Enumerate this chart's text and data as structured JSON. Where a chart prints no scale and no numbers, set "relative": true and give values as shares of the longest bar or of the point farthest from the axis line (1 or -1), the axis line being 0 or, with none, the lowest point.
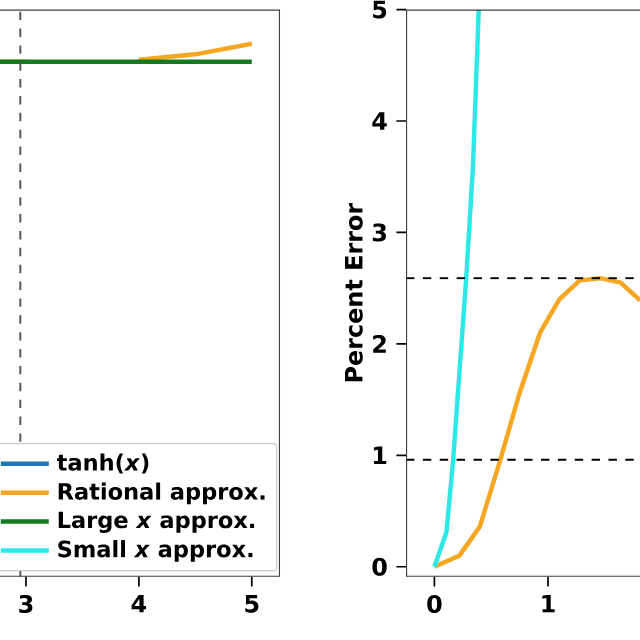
{
  "chart_data": [
    {
      "type": "line",
      "relative": true,
      "xlim": [
        2.77,
        5.25
      ],
      "xticks": [
        3,
        4,
        5
      ],
      "tick_labels": "x",
      "legend": "bottom right",
      "marker": "none",
      "line_style": "solid",
      "ref_lines": [
        {
          "axis": "x",
          "value": 2.95,
          "color": "#555555",
          "line_style": "dashed"
        }
      ],
      "series": [
        {
          "name": "tanh(*x*)",
          "color": "#1f77b4",
          "values": [
            null,
            null,
            null,
            null,
            null,
            null
          ]
        },
        {
          "name": "Rational approx.",
          "color": "#f5a623",
          "x": [
            2.77,
            3,
            3.5,
            4,
            4.5,
            5
          ],
          "values": [
            0.966,
            0.966,
            null,
            0.97,
            0.98,
            1.0
          ]
        },
        {
          "name": "Large *x* approx.",
          "color": "#157a1f",
          "x": [
            2.77,
            3,
            3.5,
            4,
            4.5,
            5
          ],
          "values": [
            0.966,
            0.966,
            0.966,
            0.966,
            0.966,
            0.966
          ]
        },
        {
          "name": "Small *x* approx.",
          "color": "#2ee8e8",
          "values": [
            null,
            null,
            null,
            null,
            null,
            null
          ]
        }
      ]
    },
    {
      "type": "line",
      "ylabel": "Percent Error",
      "xlim": [
        -0.25,
        1.81
      ],
      "ylim": [
        -0.09,
        5
      ],
      "xticks": [
        0,
        1
      ],
      "yticks": [
        0,
        1,
        2,
        3,
        4,
        5
      ],
      "marker": "none",
      "line_style": "solid",
      "ref_lines": [
        {
          "axis": "y",
          "value": 2.59,
          "color": "#000000",
          "line_style": "dashed"
        },
        {
          "axis": "y",
          "value": 0.96,
          "color": "#000000",
          "line_style": "dashed"
        }
      ],
      "series": [
        {
          "color": "#f5a623",
          "x": [
            0,
            0.22,
            0.4,
            0.58,
            0.75,
            0.93,
            1.1,
            1.28,
            1.46,
            1.64,
            1.81
          ],
          "values": [
            0,
            0.1,
            0.36,
            0.96,
            1.56,
            2.1,
            2.4,
            2.57,
            2.59,
            2.55,
            2.39
          ]
        },
        {
          "color": "#2ee8e8",
          "x": [
            0,
            0.106,
            0.165,
            0.28,
            0.34,
            0.39
          ],
          "values": [
            0,
            0.31,
            0.96,
            2.59,
            3.6,
            5
          ]
        }
      ]
    }
  ]
}
